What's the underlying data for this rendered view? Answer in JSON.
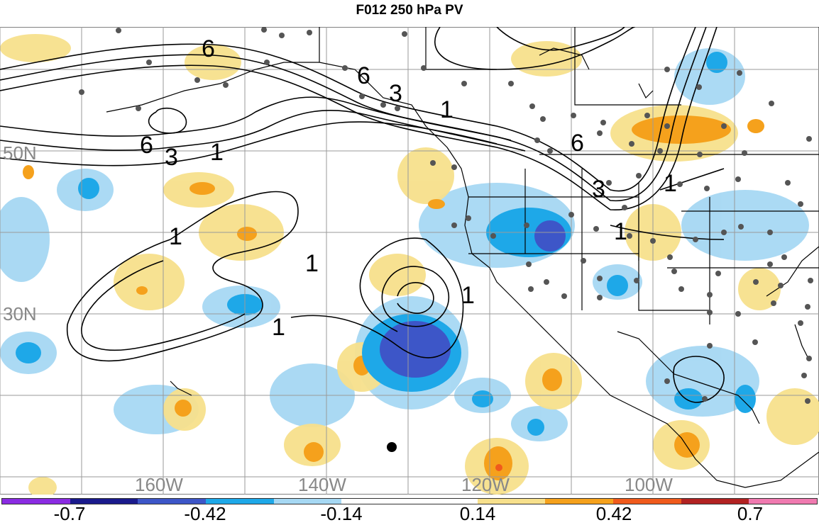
{
  "title": "F012 250 hPa PV",
  "map": {
    "lat_labels": [
      "50N",
      "30N"
    ],
    "lon_labels": [
      "160W",
      "140W",
      "120W",
      "100W"
    ],
    "contour_labels": [
      "6",
      "6",
      "3",
      "1",
      "6",
      "3",
      "1",
      "6",
      "3",
      "1",
      "1",
      "1",
      "1",
      "1",
      "1"
    ],
    "obs_marker": "black-dot"
  },
  "colorbar": {
    "colors": [
      "#8a2be2",
      "#1a1a8c",
      "#3d56c8",
      "#1ea8e8",
      "#a6d8f3",
      "#ffffff",
      "#ffffff",
      "#f7e08c",
      "#f5a11c",
      "#f05a1c",
      "#b22222",
      "#f07ab0"
    ],
    "tick_labels": [
      "-0.7",
      "-0.42",
      "-0.14",
      "0.14",
      "0.42",
      "0.7"
    ]
  }
}
